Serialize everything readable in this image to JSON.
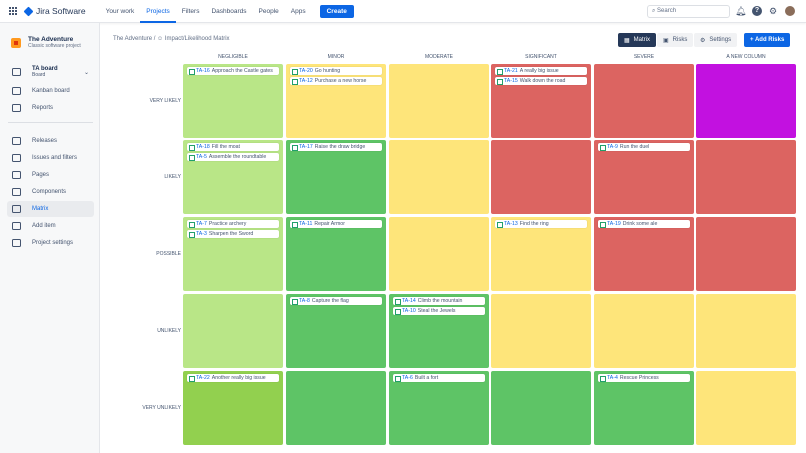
{
  "topnav": {
    "app": "Jira Software",
    "items": [
      "Your work",
      "Projects",
      "Filters",
      "Dashboards",
      "People",
      "Apps"
    ],
    "active": "Projects",
    "create": "Create",
    "search_placeholder": "Search"
  },
  "sidebar": {
    "project_name": "The Adventure",
    "project_type": "Classic software project",
    "board": "TA board",
    "board_sub": "Board",
    "items": [
      {
        "label": "Kanban board",
        "icon": "kanban-icon"
      },
      {
        "label": "Reports",
        "icon": "reports-icon"
      },
      {
        "label": "Releases",
        "icon": "releases-icon"
      },
      {
        "label": "Issues and filters",
        "icon": "issues-icon"
      },
      {
        "label": "Pages",
        "icon": "pages-icon"
      },
      {
        "label": "Components",
        "icon": "components-icon"
      },
      {
        "label": "Matrix",
        "icon": "matrix-icon",
        "active": true
      },
      {
        "label": "Add item",
        "icon": "add-item-icon"
      },
      {
        "label": "Project settings",
        "icon": "gear-icon"
      }
    ]
  },
  "breadcrumb": {
    "project": "The Adventure",
    "page": "Impact/Likelihood Matrix"
  },
  "toolbar": {
    "matrix": "Matrix",
    "risks": "Risks",
    "settings": "Settings",
    "add": "+ Add Risks"
  },
  "colors": {
    "light_green": "#b9e687",
    "mid_green": "#92d04f",
    "green": "#5ec466",
    "yellow": "#fee57a",
    "red": "#dc6461",
    "purple": "#c211e0"
  },
  "matrix": {
    "columns": [
      "NEGLIGIBLE",
      "MINOR",
      "MODERATE",
      "SIGNIFICANT",
      "SEVERE",
      "A NEW COLUMN"
    ],
    "rows": [
      {
        "label": "VERY LIKELY",
        "cells": [
          {
            "color": "light_green",
            "issues": [
              [
                "TA-16",
                "Approach the Castle gates"
              ]
            ]
          },
          {
            "color": "yellow",
            "issues": [
              [
                "TA-20",
                "Go hunting"
              ],
              [
                "TA-12",
                "Purchase a new horse"
              ]
            ]
          },
          {
            "color": "yellow",
            "issues": []
          },
          {
            "color": "red",
            "issues": [
              [
                "TA-21",
                "A really big issue"
              ],
              [
                "TA-15",
                "Walk down the road"
              ]
            ]
          },
          {
            "color": "red",
            "issues": []
          },
          {
            "color": "purple",
            "issues": []
          }
        ]
      },
      {
        "label": "LIKELY",
        "cells": [
          {
            "color": "light_green",
            "issues": [
              [
                "TA-18",
                "Fill the moat"
              ],
              [
                "TA-5",
                "Assemble the roundtable"
              ]
            ]
          },
          {
            "color": "green",
            "issues": [
              [
                "TA-17",
                "Raise the draw bridge"
              ]
            ]
          },
          {
            "color": "yellow",
            "issues": []
          },
          {
            "color": "red",
            "issues": []
          },
          {
            "color": "red",
            "issues": [
              [
                "TA-9",
                "Run the duel"
              ]
            ]
          },
          {
            "color": "red",
            "issues": []
          }
        ]
      },
      {
        "label": "POSSIBLE",
        "cells": [
          {
            "color": "light_green",
            "issues": [
              [
                "TA-7",
                "Practice archery"
              ],
              [
                "TA-3",
                "Sharpen the Sword"
              ]
            ]
          },
          {
            "color": "green",
            "issues": [
              [
                "TA-11",
                "Repair Armor"
              ]
            ]
          },
          {
            "color": "yellow",
            "issues": []
          },
          {
            "color": "yellow",
            "issues": [
              [
                "TA-13",
                "Find the ring"
              ]
            ]
          },
          {
            "color": "red",
            "issues": [
              [
                "TA-19",
                "Drink some ale"
              ]
            ]
          },
          {
            "color": "red",
            "issues": []
          }
        ]
      },
      {
        "label": "UNLIKELY",
        "cells": [
          {
            "color": "light_green",
            "issues": []
          },
          {
            "color": "green",
            "issues": [
              [
                "TA-8",
                "Capture the flag"
              ]
            ]
          },
          {
            "color": "green",
            "issues": [
              [
                "TA-14",
                "Climb the mountain"
              ],
              [
                "TA-10",
                "Steal the Jewels"
              ]
            ]
          },
          {
            "color": "yellow",
            "issues": []
          },
          {
            "color": "yellow",
            "issues": []
          },
          {
            "color": "yellow",
            "issues": []
          }
        ]
      },
      {
        "label": "VERY UNLIKELY",
        "cells": [
          {
            "color": "mid_green",
            "issues": [
              [
                "TA-22",
                "Another really big issue"
              ]
            ]
          },
          {
            "color": "green",
            "issues": []
          },
          {
            "color": "green",
            "issues": [
              [
                "TA-6",
                "Built a fort"
              ]
            ]
          },
          {
            "color": "green",
            "issues": []
          },
          {
            "color": "green",
            "issues": [
              [
                "TA-4",
                "Rescue Princess"
              ]
            ]
          },
          {
            "color": "yellow",
            "issues": []
          }
        ]
      }
    ]
  }
}
